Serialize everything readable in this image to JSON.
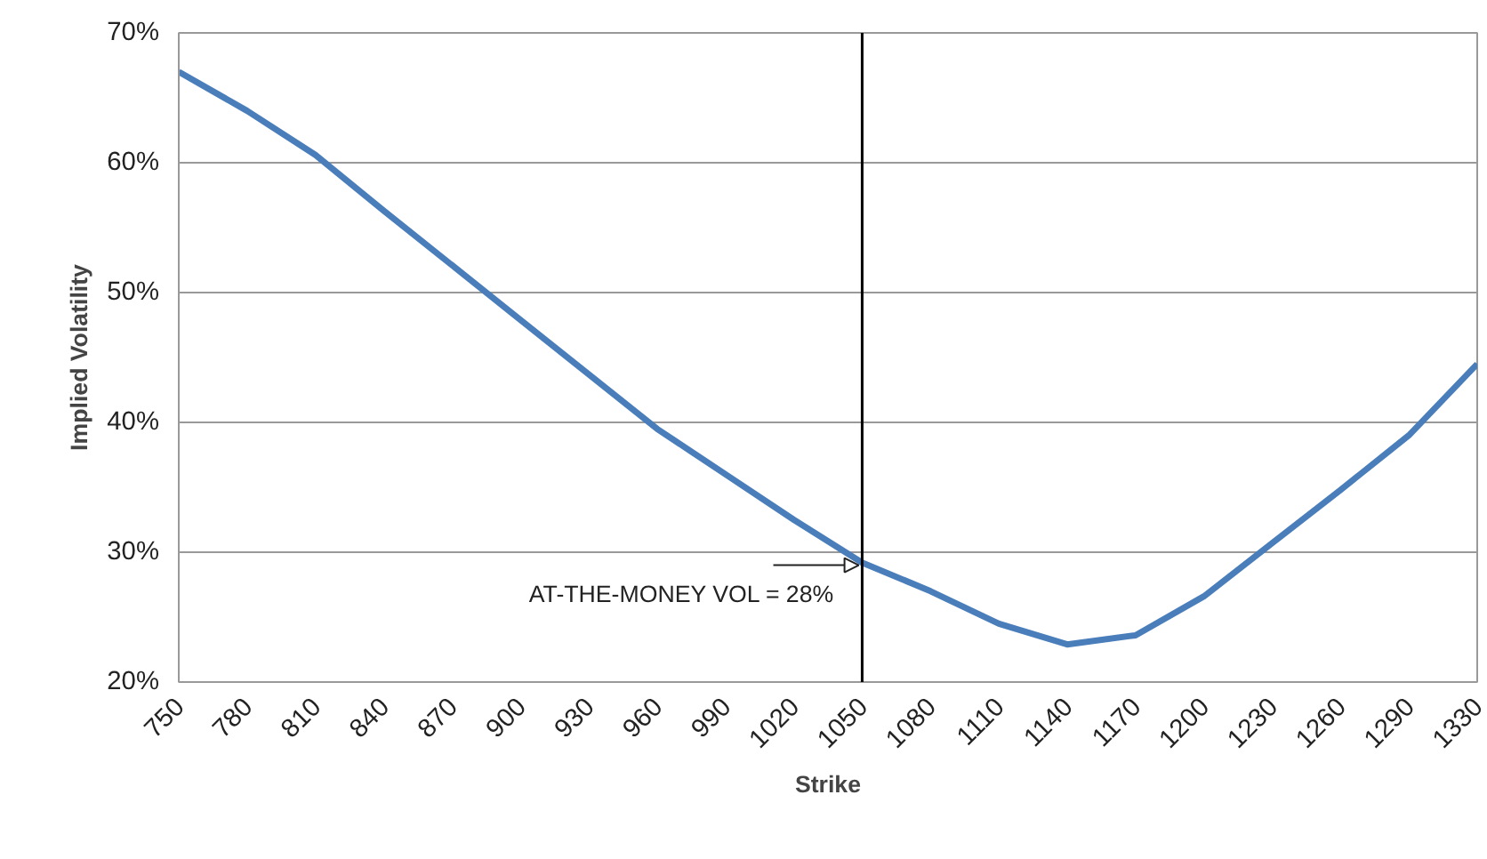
{
  "chart_data": {
    "type": "line",
    "xlabel": "Strike",
    "ylabel": "Implied Volatility",
    "categories": [
      "750",
      "780",
      "810",
      "840",
      "870",
      "900",
      "930",
      "960",
      "990",
      "1020",
      "1050",
      "1080",
      "1110",
      "1140",
      "1170",
      "1200",
      "1230",
      "1260",
      "1290",
      "1330"
    ],
    "series": [
      {
        "color": "#4a7ebb",
        "values": [
          67,
          64,
          60.6,
          56.3,
          52.1,
          47.9,
          43.7,
          39.5,
          36,
          32.5,
          29.2,
          27,
          24.5,
          22.9,
          23.6,
          26.6,
          30.7,
          34.8,
          39,
          44.5
        ]
      }
    ],
    "ylim": [
      20,
      70
    ],
    "yticks": [
      {
        "value": 20,
        "label": "20%"
      },
      {
        "value": 30,
        "label": "30%"
      },
      {
        "value": 40,
        "label": "40%"
      },
      {
        "value": 50,
        "label": "50%"
      },
      {
        "value": 60,
        "label": "60%"
      },
      {
        "value": 70,
        "label": "70%"
      }
    ],
    "ref_lines": [
      {
        "axis": "x",
        "value": "1050",
        "color": "#000000"
      }
    ],
    "annotations": [
      {
        "text": "AT-THE-MONEY VOL = 28%",
        "x": "1050",
        "y": 29
      }
    ],
    "grid": "y",
    "marker": "none",
    "line_style": "solid"
  }
}
